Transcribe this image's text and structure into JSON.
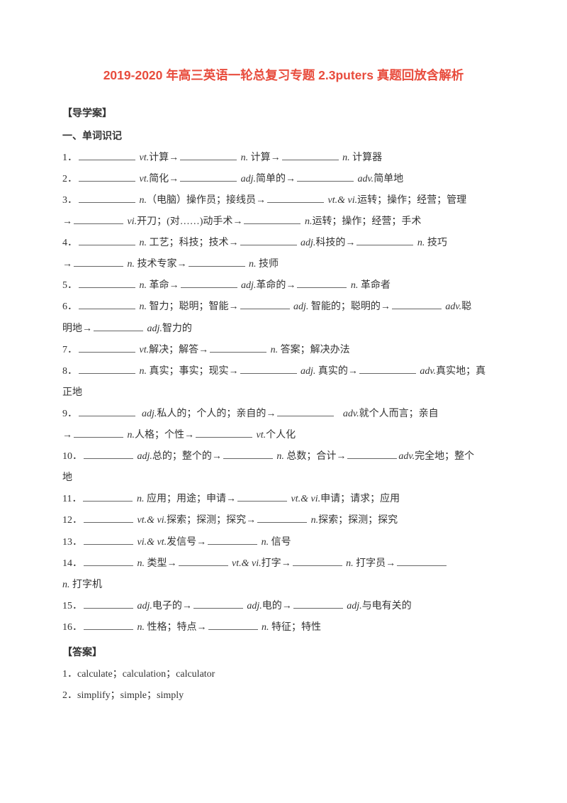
{
  "title": "2019-2020 年高三英语一轮总复习专题 2.3puters 真题回放含解析",
  "guide_label": "【导学案】",
  "section1_label": "一、单词识记",
  "answers_label": "【答案】",
  "pos": {
    "vt": "vt.",
    "vi": "vi.",
    "n": "n.",
    "adj": "adj.",
    "adv": "adv.",
    "vtvi": "vt.& vi.",
    "vivt": "vi.& vt.",
    "vt_amp_vi": "vt.&   vi."
  },
  "items": [
    {
      "num": "1．",
      "parts": [
        "计算→",
        "计算→",
        "计算器"
      ]
    },
    {
      "num": "2．",
      "parts": [
        "简化→",
        "简单的→",
        "简单地"
      ]
    },
    {
      "num": "3．",
      "line1": "（电脑）操作员；接线员→",
      "line1b": "运转；操作；经营；管理",
      "line2pre": "→",
      "line2a": "开刀；(对……)动手术→",
      "line2b": "运转；操作；经营；手术"
    },
    {
      "num": "4．",
      "line1a": "工艺；科技；技术→",
      "line1b": "科技的→",
      "line1c": "技巧",
      "line2pre": "→",
      "line2a": "技术专家→",
      "line2b": "技师"
    },
    {
      "num": "5．",
      "parts": [
        "革命→",
        "革命的→",
        "革命者"
      ]
    },
    {
      "num": "6．",
      "line1a": "智力；聪明；智能→",
      "line1b": "智能的；聪明的→",
      "line1c": "聪",
      "line2a": "明地→",
      "line2b": "智力的"
    },
    {
      "num": "7．",
      "a": "解决；解答→",
      "b": "答案；解决办法"
    },
    {
      "num": "8．",
      "line1a": "真实；事实；现实→",
      "line1b": "真实的→",
      "line1c": "真实地；真",
      "line2": "正地"
    },
    {
      "num": "9．",
      "line1a": "私人的；个人的；亲自的→",
      "line1b": "就个人而言；亲自",
      "line2pre": "→",
      "line2a": "人格；个性→",
      "line2b": "个人化"
    },
    {
      "num": "10．",
      "a": "总的；整个的→",
      "b": "总数；合计→",
      "c": "完全地；整个",
      "line2": "地"
    },
    {
      "num": "11．",
      "a": "应用；用途；申请→",
      "b": "申请；请求；应用"
    },
    {
      "num": "12．",
      "a": "探索；探测；探究→",
      "b": "探索；探测；探究"
    },
    {
      "num": "13．",
      "a": "发信号→",
      "b": "信号"
    },
    {
      "num": "14．",
      "a": "类型→",
      "b": "打字→",
      "c": "打字员→",
      "line2": "打字机"
    },
    {
      "num": "15．",
      "a": "电子的→",
      "b": "电的→",
      "c": "与电有关的"
    },
    {
      "num": "16．",
      "a": "性格；特点→",
      "b": "特征；特性"
    }
  ],
  "answers": [
    "1．calculate；calculation；calculator",
    "2．simplify；simple；simply"
  ]
}
